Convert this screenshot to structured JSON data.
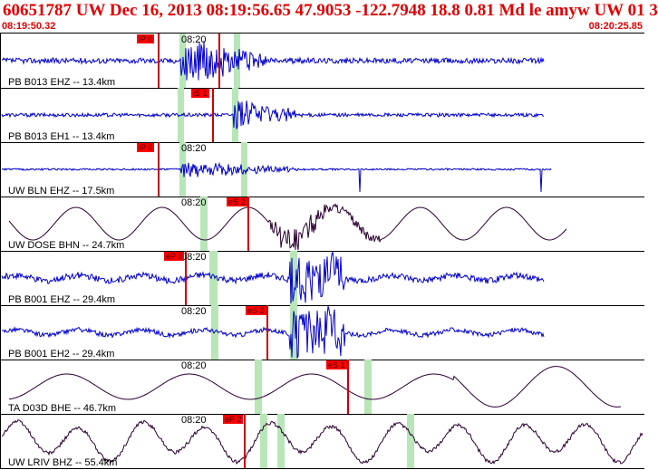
{
  "header": {
    "title": "60651787 UW Dec 16, 2013 08:19:56.65    47.9053 -122.7948 18.8 0.81 Md le amyw UW 01   3",
    "start_time": "08:19:50.32",
    "end_time": "08:20:25.85"
  },
  "colors": {
    "title": "#e00000",
    "waveform_blue": "#0000cc",
    "waveform_dark": "#2a0030",
    "pick_box": "#ff0000",
    "pick_window": "#b8e6b8"
  },
  "traces": [
    {
      "label": "PB B013 EHZ -- 13.4km",
      "time_mark": "08:20",
      "picks": [
        {
          "text": "iP 0",
          "pos": 0.246
        },
        {
          "text": "",
          "pos": 0.34
        }
      ]
    },
    {
      "label": "PB B013 EH1 -- 13.4km",
      "time_mark": "",
      "picks": [
        {
          "text": "iS 1",
          "pos": 0.33
        }
      ]
    },
    {
      "label": "UW BLN EHZ -- 17.5km",
      "time_mark": "08:20",
      "picks": [
        {
          "text": "iP 0",
          "pos": 0.246
        }
      ]
    },
    {
      "label": "UW DOSE BHN -- 24.7km",
      "time_mark": "08:20",
      "picks": [
        {
          "text": "eS 2",
          "pos": 0.385
        }
      ]
    },
    {
      "label": "PB B001 EHZ -- 29.4km",
      "time_mark": "08:20",
      "picks": [
        {
          "text": "eP 3",
          "pos": 0.288
        }
      ]
    },
    {
      "label": "PB B001 EH2 -- 29.4km",
      "time_mark": "08:20",
      "picks": [
        {
          "text": "eS 2",
          "pos": 0.415
        }
      ]
    },
    {
      "label": "TA D03D BHE -- 46.7km",
      "time_mark": "08:20",
      "picks": [
        {
          "text": "eS 1",
          "pos": 0.54
        }
      ]
    },
    {
      "label": "UW LRIV BHZ -- 55.4km",
      "time_mark": "08:20",
      "picks": [
        {
          "text": "eP 2",
          "pos": 0.38
        }
      ]
    }
  ]
}
